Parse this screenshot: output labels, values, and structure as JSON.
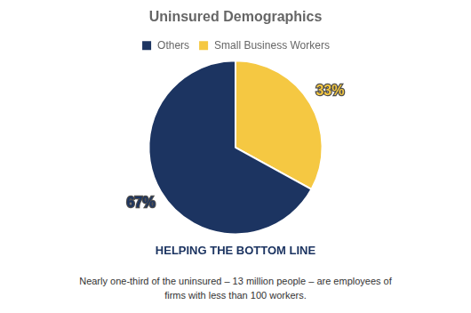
{
  "chart_data": {
    "type": "pie",
    "title": "Uninsured Demographics",
    "subtitle": "HELPING THE BOTTOM LINE",
    "annotations": [
      "Nearly one-third of the uninsured – 13 million people – are employees of\nfirms with less than 100 workers."
    ],
    "categories": [
      "Small Business Workers",
      "Others"
    ],
    "values": [
      33,
      67
    ],
    "value_labels": [
      "33%",
      "67%"
    ],
    "colors": [
      "#f5c842",
      "#1c3461"
    ],
    "data_labels": true,
    "legend": "top"
  }
}
